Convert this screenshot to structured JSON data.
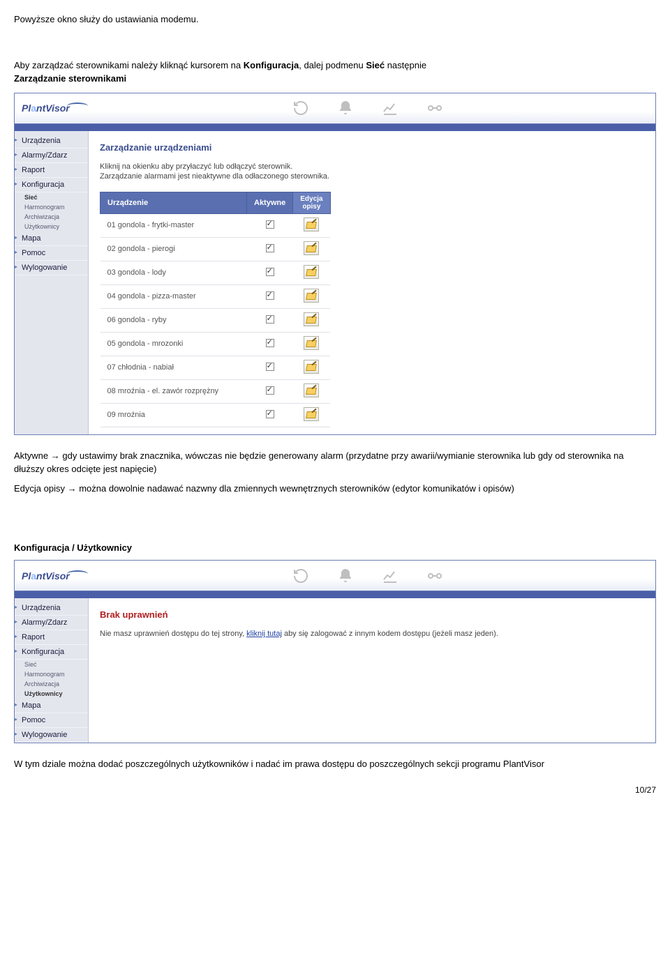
{
  "doc": {
    "intro_line": "Powyższe okno służy do ustawiania modemu.",
    "para1_pre": "Aby zarządzać sterownikami należy kliknąć kursorem na ",
    "para1_b1": "Konfiguracja",
    "para1_mid": ", dalej podmenu ",
    "para1_b2": "Sieć",
    "para1_post": " następnie",
    "para1_line2": "Zarządzanie sterownikami",
    "aktywne_pre": "Aktywne → gdy ustawimy brak znacznika, wówczas nie będzie generowany alarm (przydatne przy awarii/wymianie sterownika lub gdy od sterownika na dłuższy okres odcięte jest napięcie)",
    "edycja_text": "Edycja opisy → można dowolnie nadawać nazwny dla zmiennych wewnętrznych sterowników (edytor komunikatów i opisów)",
    "section2_title": "Konfiguracja / Użytkownicy",
    "closing": "W tym dziale można dodać poszczególnych użytkowników i nadać im prawa dostępu do poszczególnych sekcji programu PlantVisor",
    "page_num": "10/27"
  },
  "app": {
    "logo_a": "Pl",
    "logo_b": "a",
    "logo_c": "ntVisor",
    "sidebar": {
      "items": [
        "Urządzenia",
        "Alarmy/Zdarz",
        "Raport",
        "Konfiguracja"
      ],
      "subs": [
        "Sieć",
        "Harmonogram",
        "Archiwizacja",
        "Użytkownicy"
      ],
      "items2": [
        "Mapa",
        "Pomoc",
        "Wylogowanie"
      ]
    }
  },
  "screen1": {
    "title": "Zarządzanie urządzeniami",
    "instr1": "Kliknij na okienku aby przyłaczyć lub odłączyć sterownik.",
    "instr2": "Zarządzanie alarmami jest nieaktywne dla odłaczonego sterownika.",
    "th_device": "Urządzenie",
    "th_active": "Aktywne",
    "th_edit": "Edycja opisy",
    "rows": [
      "01 gondola - frytki-master",
      "02 gondola - pierogi",
      "03 gondola - lody",
      "04 gondola - pizza-master",
      "06 gondola - ryby",
      "05 gondola - mrozonki",
      "07 chłodnia - nabiał",
      "08 mroźnia - el. zawór rozprężny",
      "09 mroźnia"
    ],
    "bold_sub": "Sieć"
  },
  "screen2": {
    "title": "Brak uprawnień",
    "msg_pre": "Nie masz uprawnień dostępu do tej strony, ",
    "msg_link": "kliknij tutaj",
    "msg_post": " aby się zalogować z innym kodem dostępu (jeżeli masz jeden).",
    "bold_sub": "Użytkownicy"
  }
}
